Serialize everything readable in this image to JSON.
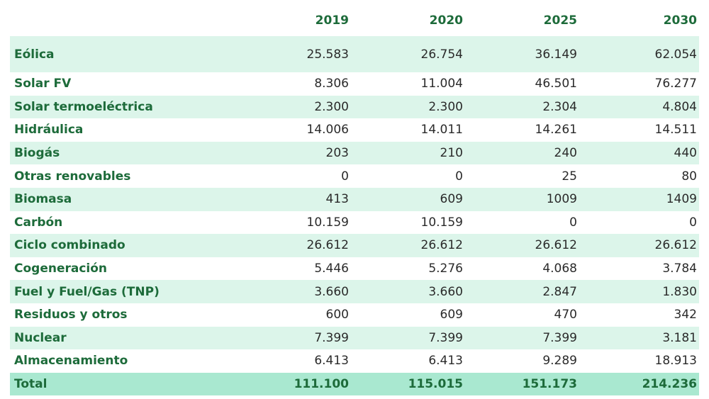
{
  "table": {
    "headers": [
      "",
      "2019",
      "2020",
      "2025",
      "2030"
    ],
    "rows": [
      {
        "label": "Eólica",
        "values": [
          "25.583",
          "26.754",
          "36.149",
          "62.054"
        ]
      },
      {
        "label": "Solar FV",
        "values": [
          "8.306",
          "11.004",
          "46.501",
          "76.277"
        ]
      },
      {
        "label": "Solar termoeléctrica",
        "values": [
          "2.300",
          "2.300",
          "2.304",
          "4.804"
        ]
      },
      {
        "label": "Hidráulica",
        "values": [
          "14.006",
          "14.011",
          "14.261",
          "14.511"
        ]
      },
      {
        "label": "Biogás",
        "values": [
          "203",
          "210",
          "240",
          "440"
        ]
      },
      {
        "label": "Otras renovables",
        "values": [
          "0",
          "0",
          "25",
          "80"
        ]
      },
      {
        "label": "Biomasa",
        "values": [
          "413",
          "609",
          "1009",
          "1409"
        ]
      },
      {
        "label": "Carbón",
        "values": [
          "10.159",
          "10.159",
          "0",
          "0"
        ]
      },
      {
        "label": "Ciclo combinado",
        "values": [
          "26.612",
          "26.612",
          "26.612",
          "26.612"
        ]
      },
      {
        "label": "Cogeneración",
        "values": [
          "5.446",
          "5.276",
          "4.068",
          "3.784"
        ]
      },
      {
        "label": "Fuel y Fuel/Gas (TNP)",
        "values": [
          "3.660",
          "3.660",
          "2.847",
          "1.830"
        ]
      },
      {
        "label": "Residuos y otros",
        "values": [
          "600",
          "609",
          "470",
          "342"
        ]
      },
      {
        "label": "Nuclear",
        "values": [
          "7.399",
          "7.399",
          "7.399",
          "3.181"
        ]
      },
      {
        "label": "Almacenamiento",
        "values": [
          "6.413",
          "6.413",
          "9.289",
          "18.913"
        ]
      }
    ],
    "total": {
      "label": "Total",
      "values": [
        "111.100",
        "115.015",
        "151.173",
        "214.236"
      ]
    }
  },
  "colors": {
    "label_text": "#1d6b3a",
    "value_text": "#2a2a2a",
    "row_shade": "#dcf5ea",
    "total_row": "#a9e8d0"
  }
}
